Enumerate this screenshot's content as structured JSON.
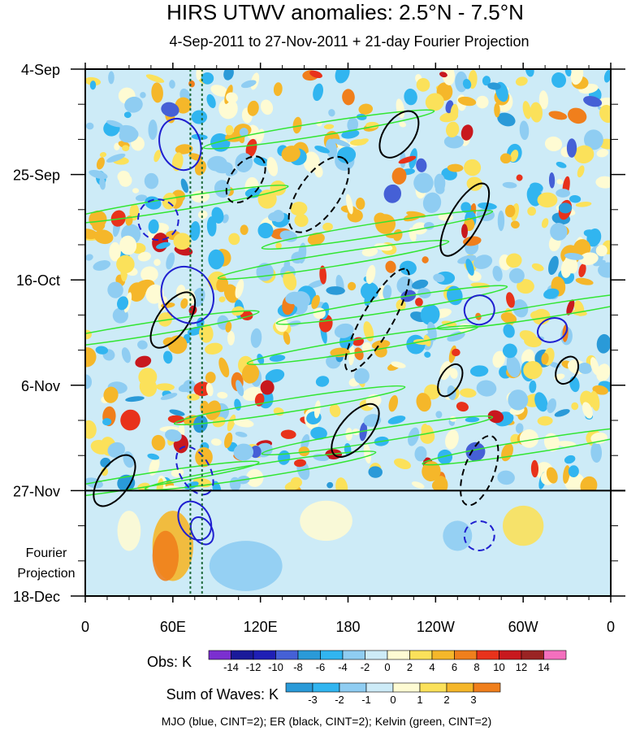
{
  "chart_data": {
    "type": "heatmap",
    "title": "HIRS UTWV anomalies: 2.5°N - 7.5°N",
    "subtitle": "4-Sep-2011 to 27-Nov-2011 + 21-day Fourier Projection",
    "x_tick_labels": [
      "0",
      "60E",
      "120E",
      "180",
      "120W",
      "60W",
      "0"
    ],
    "x_range_deg_east": [
      0,
      360
    ],
    "y_tick_labels": [
      "4-Sep",
      "25-Sep",
      "16-Oct",
      "6-Nov",
      "27-Nov",
      "18-Dec"
    ],
    "y_range_days": [
      0,
      105
    ],
    "observation_end_label": "27-Nov",
    "projection_label": [
      "Fourier",
      "Projection"
    ],
    "vertical_reference_lines_deg_east": [
      72,
      80
    ],
    "obs_colorbar": {
      "label": "Obs: K",
      "levels": [
        "-14",
        "-12",
        "-10",
        "-8",
        "-6",
        "-4",
        "-2",
        "0",
        "2",
        "4",
        "6",
        "8",
        "10",
        "12",
        "14"
      ],
      "colors": [
        "#7b2fd0",
        "#1a1a9a",
        "#1f1fb5",
        "#4560d6",
        "#2a9ad8",
        "#31b5f0",
        "#8fcdf2",
        "#cdebf7",
        "#fefbd3",
        "#fbe15a",
        "#f5b72a",
        "#f07f1c",
        "#e8321b",
        "#c8181e",
        "#9a2323",
        "#f46fbe"
      ]
    },
    "waves_colorbar": {
      "label": "Sum of Waves: K",
      "levels": [
        "-3",
        "-2",
        "-1",
        "0",
        "1",
        "2",
        "3"
      ],
      "colors": [
        "#2a9ad8",
        "#31b5f0",
        "#8fcdf2",
        "#cdebf7",
        "#fefbd3",
        "#fbe15a",
        "#f5b72a",
        "#f07f1c"
      ]
    },
    "contour_legend": "MJO (blue, CINT=2); ER (black, CINT=2); Kelvin (green, CINT=2)",
    "series": [
      {
        "name": "MJO",
        "color": "#1f1fd0",
        "cint": 2
      },
      {
        "name": "ER",
        "color": "#000000",
        "cint": 2
      },
      {
        "name": "Kelvin",
        "color": "#32e632",
        "cint": 2
      }
    ]
  }
}
